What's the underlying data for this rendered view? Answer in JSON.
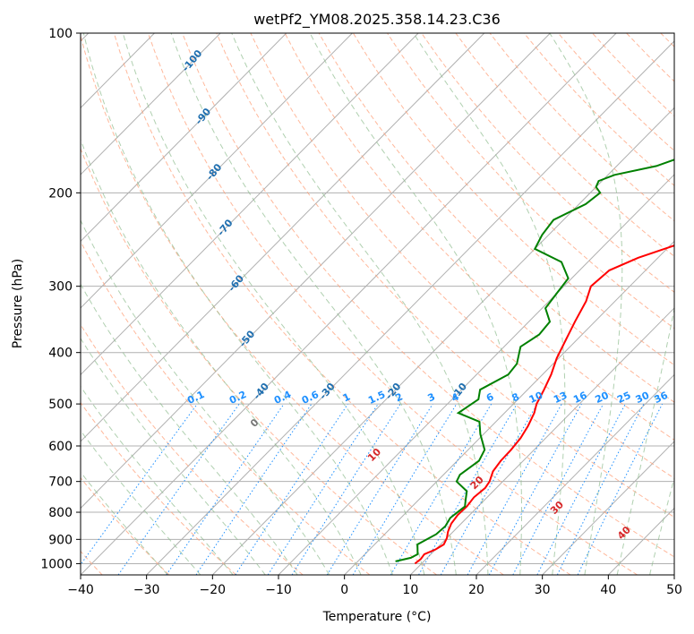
{
  "chart_data": {
    "type": "line",
    "title": "wetPf2_YM08.2025.358.14.23.C36",
    "xlabel": "Temperature (°C)",
    "ylabel": "Pressure (hPa)",
    "xlim": [
      -40,
      50
    ],
    "ylim": [
      1050,
      100
    ],
    "y_scale": "log",
    "grid": true,
    "x_ticks": [
      "−40",
      "−30",
      "−20",
      "−10",
      "0",
      "10",
      "20",
      "30",
      "40",
      "50"
    ],
    "x_tick_values": [
      -40,
      -30,
      -20,
      -10,
      0,
      10,
      20,
      30,
      40,
      50
    ],
    "y_ticks": [
      "1000",
      "900",
      "800",
      "700",
      "600",
      "500",
      "400",
      "300",
      "200",
      "100"
    ],
    "y_tick_values": [
      1000,
      900,
      800,
      700,
      600,
      500,
      400,
      300,
      200,
      100
    ],
    "series": [
      {
        "color": "#ff0000",
        "points": [
          [
            9.0,
            1000
          ],
          [
            9.2,
            980
          ],
          [
            9.0,
            960
          ],
          [
            10.0,
            940
          ],
          [
            10.5,
            920
          ],
          [
            10.0,
            895
          ],
          [
            9.2,
            870
          ],
          [
            8.5,
            840
          ],
          [
            8.2,
            810
          ],
          [
            8.3,
            780
          ],
          [
            8.0,
            750
          ],
          [
            8.3,
            720
          ],
          [
            8.0,
            700
          ],
          [
            7.0,
            670
          ],
          [
            6.6,
            640
          ],
          [
            6.5,
            610
          ],
          [
            6.2,
            580
          ],
          [
            5.5,
            550
          ],
          [
            4.5,
            520
          ],
          [
            3.5,
            500
          ],
          [
            2.5,
            470
          ],
          [
            1.3,
            440
          ],
          [
            -0.3,
            410
          ],
          [
            -1.6,
            380
          ],
          [
            -3.0,
            350
          ],
          [
            -4.4,
            320
          ],
          [
            -5.9,
            300
          ],
          [
            -5.5,
            280
          ],
          [
            -3.0,
            265
          ],
          [
            1.0,
            250
          ],
          [
            5.0,
            235
          ],
          [
            9.0,
            215
          ],
          [
            12.0,
            200
          ],
          [
            15.0,
            185
          ],
          [
            17.5,
            170
          ],
          [
            20.5,
            155
          ],
          [
            24.5,
            140
          ],
          [
            27.0,
            130
          ],
          [
            28.8,
            122
          ],
          [
            29.5,
            115
          ],
          [
            31.0,
            108
          ],
          [
            33.0,
            100
          ]
        ]
      },
      {
        "color": "#008000",
        "points": [
          [
            5.7,
            990
          ],
          [
            7.5,
            975
          ],
          [
            8.0,
            960
          ],
          [
            6.5,
            920
          ],
          [
            7.8,
            880
          ],
          [
            8.0,
            850
          ],
          [
            7.5,
            820
          ],
          [
            8.0,
            780
          ],
          [
            7.2,
            760
          ],
          [
            6.0,
            730
          ],
          [
            3.0,
            700
          ],
          [
            2.5,
            680
          ],
          [
            3.3,
            640
          ],
          [
            2.5,
            610
          ],
          [
            -0.5,
            570
          ],
          [
            -2.5,
            540
          ],
          [
            -7.0,
            520
          ],
          [
            -6.0,
            490
          ],
          [
            -7.2,
            470
          ],
          [
            -5.2,
            440
          ],
          [
            -5.5,
            420
          ],
          [
            -7.5,
            390
          ],
          [
            -6.5,
            370
          ],
          [
            -6.8,
            350
          ],
          [
            -9.5,
            330
          ],
          [
            -10.0,
            310
          ],
          [
            -10.5,
            290
          ],
          [
            -14.0,
            270
          ],
          [
            -20.0,
            255
          ],
          [
            -21.0,
            240
          ],
          [
            -21.5,
            225
          ],
          [
            -19.0,
            210
          ],
          [
            -18.5,
            200
          ],
          [
            -20.0,
            195
          ],
          [
            -20.5,
            190
          ],
          [
            -19.0,
            185
          ],
          [
            -14.0,
            178
          ],
          [
            -11.0,
            170
          ],
          [
            -11.0,
            160
          ],
          [
            -14.0,
            155
          ],
          [
            -13.5,
            148
          ],
          [
            -11.0,
            140
          ],
          [
            -6.0,
            130
          ],
          [
            -3.0,
            120
          ],
          [
            -1.0,
            110
          ],
          [
            -0.3,
            100
          ]
        ]
      }
    ],
    "dry_adiabat_labels": [
      "-100",
      "-90",
      "-80",
      "-70",
      "-60",
      "-50",
      "-40",
      "-30",
      "-20",
      "-10"
    ],
    "dry_adiabat_temps": [
      -100,
      -90,
      -80,
      -70,
      -60,
      -50,
      -40,
      -30,
      -20,
      -10
    ],
    "mixing_ratio_labels": [
      "0.1",
      "0.2",
      "0.4",
      "0.6",
      "1",
      "1.5",
      "2",
      "3",
      "4",
      "6",
      "8",
      "10",
      "13",
      "16",
      "20",
      "25",
      "30",
      "36"
    ],
    "mixing_ratio_values": [
      0.1,
      0.2,
      0.4,
      0.6,
      1,
      1.5,
      2,
      3,
      4,
      6,
      8,
      10,
      13,
      16,
      20,
      25,
      30,
      36
    ],
    "moist_adiabat_labels": [
      "0",
      "10",
      "20",
      "30",
      "40"
    ],
    "moist_adiabat_temps": [
      0,
      10,
      20,
      30,
      40
    ],
    "colors": {
      "dry_adiabat": "#ffa07a",
      "moist_adiabat": "#8fbc8f",
      "mixing_ratio": "#1e90ff",
      "isotherm": "#999999",
      "dry_label": "#1f6fb0",
      "moist_label_warm": "#d62728",
      "moist_label_zero": "#777777"
    }
  }
}
